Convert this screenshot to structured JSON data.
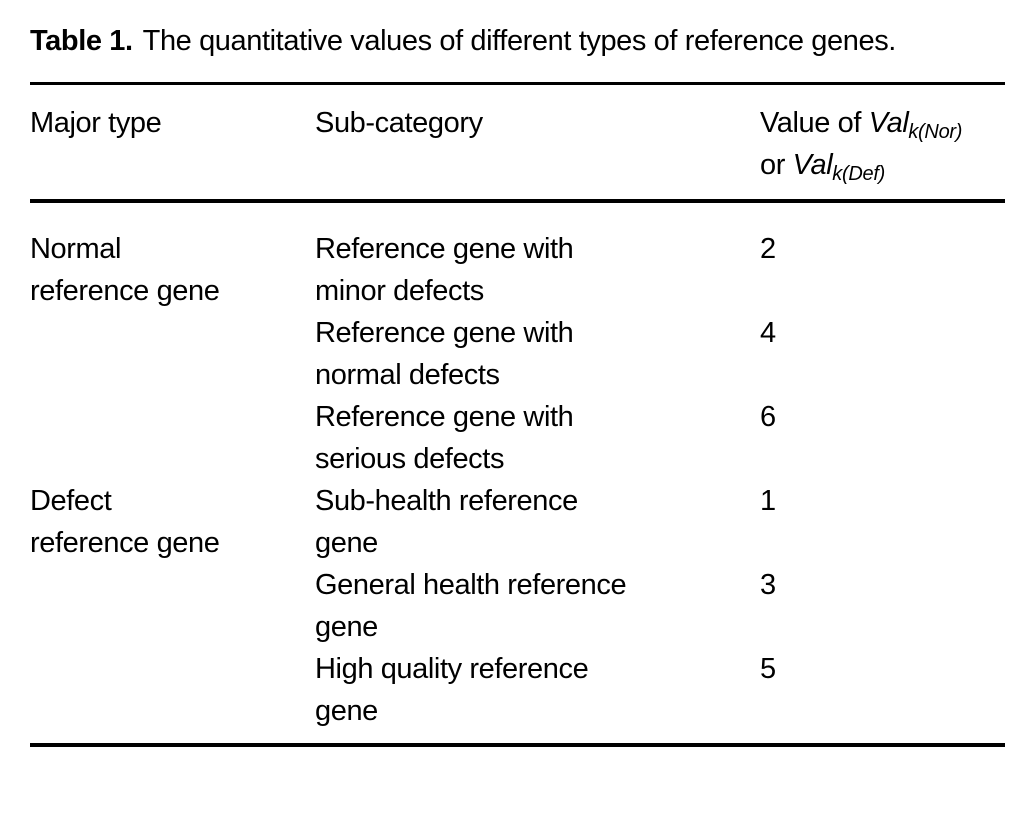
{
  "title": {
    "label": "Table 1.",
    "text": "The quantitative values of different types of reference genes."
  },
  "table": {
    "header": {
      "major_type": "Major type",
      "sub_category": "Sub-category",
      "value": {
        "line1_prefix": "Value of ",
        "var1": "Val",
        "sub1": "k(Nor)",
        "line2_prefix": "or ",
        "var2": "Val",
        "sub2": "k(Def)"
      }
    },
    "rows": [
      {
        "major_type": "Normal\nreference gene",
        "sub_category": "Reference gene with\nminor defects",
        "value": "2"
      },
      {
        "major_type": "",
        "sub_category": "Reference gene with\nnormal defects",
        "value": "4"
      },
      {
        "major_type": "",
        "sub_category": "Reference gene with\nserious defects",
        "value": "6"
      },
      {
        "major_type": "Defect\nreference gene",
        "sub_category": "Sub-health reference\ngene",
        "value": "1"
      },
      {
        "major_type": "",
        "sub_category": "General health reference\ngene",
        "value": "3"
      },
      {
        "major_type": "",
        "sub_category": "High quality reference\ngene",
        "value": "5"
      }
    ]
  },
  "colors": {
    "text": "#000000",
    "background": "#ffffff",
    "rule": "#000000"
  }
}
